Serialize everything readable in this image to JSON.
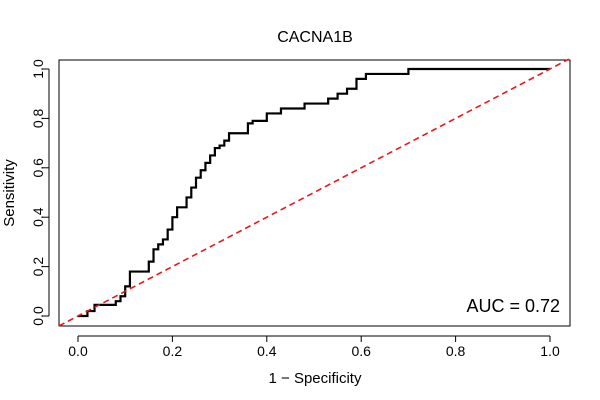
{
  "chart_data": {
    "type": "line",
    "title": "CACNA1B",
    "xlabel": "1 − Specificity",
    "ylabel": "Sensitivity",
    "xlim": [
      0,
      1
    ],
    "ylim": [
      0,
      1
    ],
    "xticks": [
      0.0,
      0.2,
      0.4,
      0.6,
      0.8,
      1.0
    ],
    "yticks": [
      0.0,
      0.2,
      0.4,
      0.6,
      0.8,
      1.0
    ],
    "xtick_labels": [
      "0.0",
      "0.2",
      "0.4",
      "0.6",
      "0.8",
      "1.0"
    ],
    "ytick_labels": [
      "0.0",
      "0.2",
      "0.4",
      "0.6",
      "0.8",
      "1.0"
    ],
    "annotation": "AUC = 0.72",
    "grid": false,
    "series": [
      {
        "color": "#000000",
        "style": "solid-step",
        "x": [
          0.0,
          0.02,
          0.02,
          0.035,
          0.035,
          0.08,
          0.08,
          0.09,
          0.09,
          0.1,
          0.1,
          0.11,
          0.11,
          0.15,
          0.15,
          0.16,
          0.16,
          0.17,
          0.17,
          0.18,
          0.18,
          0.19,
          0.19,
          0.2,
          0.2,
          0.21,
          0.21,
          0.23,
          0.23,
          0.24,
          0.24,
          0.25,
          0.25,
          0.26,
          0.26,
          0.27,
          0.27,
          0.28,
          0.28,
          0.29,
          0.29,
          0.3,
          0.3,
          0.31,
          0.31,
          0.32,
          0.32,
          0.36,
          0.36,
          0.37,
          0.37,
          0.4,
          0.4,
          0.43,
          0.43,
          0.48,
          0.48,
          0.53,
          0.53,
          0.55,
          0.55,
          0.57,
          0.57,
          0.59,
          0.59,
          0.61,
          0.61,
          0.7,
          0.7,
          0.8,
          0.8,
          1.0
        ],
        "y": [
          0.0,
          0.0,
          0.02,
          0.02,
          0.045,
          0.045,
          0.06,
          0.06,
          0.08,
          0.08,
          0.12,
          0.12,
          0.18,
          0.18,
          0.22,
          0.22,
          0.27,
          0.27,
          0.29,
          0.29,
          0.31,
          0.31,
          0.35,
          0.35,
          0.4,
          0.4,
          0.44,
          0.44,
          0.48,
          0.48,
          0.52,
          0.52,
          0.56,
          0.56,
          0.59,
          0.59,
          0.62,
          0.62,
          0.65,
          0.65,
          0.68,
          0.68,
          0.69,
          0.69,
          0.71,
          0.71,
          0.74,
          0.74,
          0.78,
          0.78,
          0.79,
          0.79,
          0.82,
          0.82,
          0.84,
          0.84,
          0.86,
          0.86,
          0.88,
          0.88,
          0.9,
          0.9,
          0.92,
          0.92,
          0.96,
          0.96,
          0.98,
          0.98,
          1.0,
          1.0,
          1.0,
          1.0
        ]
      },
      {
        "color": "#e41a1c",
        "style": "dashed",
        "x": [
          0.0,
          1.0
        ],
        "y": [
          0.0,
          1.0
        ]
      }
    ]
  }
}
